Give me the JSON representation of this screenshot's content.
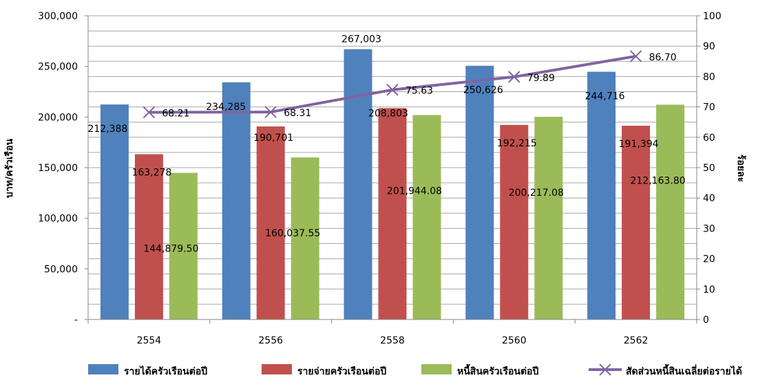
{
  "chart_data": {
    "type": "bar",
    "categories": [
      "2554",
      "2556",
      "2558",
      "2560",
      "2562"
    ],
    "series": [
      {
        "name": "รายได้ครัวเรือนต่อปี",
        "type": "bar",
        "axis": "left",
        "color": "#4F81BD",
        "values": [
          212388,
          234285,
          267003,
          250626,
          244716
        ],
        "labels": [
          "212,388",
          "234,285",
          "267,003",
          "250,626",
          "244,716"
        ]
      },
      {
        "name": "รายจ่ายครัวเรือนต่อปี",
        "type": "bar",
        "axis": "left",
        "color": "#C0504D",
        "values": [
          163278,
          190701,
          208803,
          192215,
          191394
        ],
        "labels": [
          "163,278",
          "190,701",
          "208,803",
          "192,215",
          "191,394"
        ]
      },
      {
        "name": "หนี้สินครัวเรือนต่อปี",
        "type": "bar",
        "axis": "left",
        "color": "#9BBB59",
        "values": [
          144879.5,
          160037.55,
          201944.08,
          200217.08,
          212163.8
        ],
        "labels": [
          "144,879.50",
          "160,037.55",
          "201,944.08",
          "200,217.08",
          "212,163.80"
        ]
      },
      {
        "name": "สัดส่วนหนี้สินเฉลี่ยต่อรายได้",
        "type": "line",
        "axis": "right",
        "color": "#8064A2",
        "values": [
          68.21,
          68.31,
          75.63,
          79.89,
          86.7
        ],
        "labels": [
          "68.21",
          "68.31",
          "75.63",
          "79.89",
          "86.70"
        ]
      }
    ],
    "ylabel": "บาท/ครัวเรือน",
    "y2label": "ร้อยละ",
    "ylim": [
      0,
      300000
    ],
    "y2lim": [
      0,
      100
    ],
    "yticks": [
      "-",
      "50,000",
      "100,000",
      "150,000",
      "200,000",
      "250,000",
      "300,000"
    ],
    "y2ticks": [
      "0",
      "10",
      "20",
      "30",
      "40",
      "50",
      "60",
      "70",
      "80",
      "90",
      "100"
    ],
    "grid": true,
    "legend": "bottom"
  }
}
